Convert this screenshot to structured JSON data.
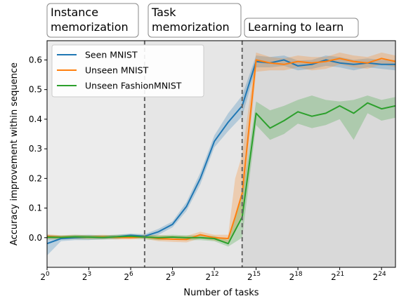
{
  "chart_data": {
    "type": "line",
    "xlabel": "Number of tasks",
    "ylabel": "Accuracy improvement within sequence",
    "x_scale": "log2",
    "x_tick_exponents": [
      0,
      3,
      6,
      9,
      12,
      15,
      18,
      21,
      24
    ],
    "x_tick_base": "2",
    "xlim_exponent": [
      0,
      25
    ],
    "ylim": [
      -0.1,
      0.665
    ],
    "y_ticks": [
      "0.0",
      "0.1",
      "0.2",
      "0.3",
      "0.4",
      "0.5",
      "0.6"
    ],
    "legend_position": "top-left",
    "phases": [
      {
        "label_lines": [
          "Instance",
          "memorization"
        ],
        "start_exponent": 0,
        "end_exponent": 7,
        "shade": "#ececec"
      },
      {
        "label_lines": [
          "Task",
          "memorization"
        ],
        "start_exponent": 7,
        "end_exponent": 14,
        "shade": "#e6e6e6"
      },
      {
        "label_lines": [
          "Learning to learn"
        ],
        "start_exponent": 14,
        "end_exponent": 25,
        "shade": "#d9d9d9"
      }
    ],
    "boundaries_exponent": [
      7,
      14
    ],
    "series": [
      {
        "name": "Seen MNIST",
        "color": "#1f77b4",
        "x_exponent": [
          0,
          1,
          2,
          3,
          4,
          5,
          6,
          7,
          8,
          9,
          10,
          11,
          12,
          13,
          14,
          15,
          16,
          17,
          18,
          19,
          20,
          21,
          22,
          23,
          24,
          25
        ],
        "y": [
          -0.02,
          -0.003,
          0.0,
          0.002,
          0.001,
          0.003,
          0.008,
          0.005,
          0.02,
          0.045,
          0.105,
          0.2,
          0.325,
          0.39,
          0.445,
          0.595,
          0.59,
          0.6,
          0.58,
          0.585,
          0.6,
          0.59,
          0.585,
          0.59,
          0.585,
          0.585
        ],
        "lower": [
          -0.06,
          -0.012,
          -0.008,
          -0.008,
          -0.006,
          -0.004,
          0.002,
          -0.002,
          0.01,
          0.035,
          0.09,
          0.18,
          0.305,
          0.36,
          0.41,
          0.575,
          0.575,
          0.58,
          0.565,
          0.57,
          0.58,
          0.575,
          0.565,
          0.575,
          0.57,
          0.565
        ],
        "upper": [
          0.01,
          0.006,
          0.008,
          0.01,
          0.008,
          0.01,
          0.014,
          0.012,
          0.03,
          0.055,
          0.12,
          0.22,
          0.345,
          0.42,
          0.48,
          0.615,
          0.61,
          0.615,
          0.598,
          0.6,
          0.615,
          0.61,
          0.6,
          0.605,
          0.6,
          0.6
        ]
      },
      {
        "name": "Unseen MNIST",
        "color": "#ff7f0e",
        "x_exponent": [
          0,
          1,
          2,
          3,
          4,
          5,
          6,
          7,
          8,
          9,
          10,
          11,
          12,
          13,
          13.5,
          14,
          15,
          16,
          17,
          18,
          19,
          20,
          21,
          22,
          23,
          24,
          25
        ],
        "y": [
          0.005,
          0.002,
          0.003,
          0.002,
          0.003,
          0.001,
          0.0,
          0.003,
          -0.003,
          -0.005,
          -0.006,
          0.01,
          0.0,
          -0.003,
          0.07,
          0.15,
          0.6,
          0.59,
          0.585,
          0.595,
          0.59,
          0.595,
          0.605,
          0.595,
          0.59,
          0.605,
          0.595
        ],
        "lower": [
          -0.005,
          -0.005,
          -0.004,
          -0.005,
          -0.004,
          -0.006,
          -0.006,
          -0.004,
          -0.012,
          -0.014,
          -0.016,
          -0.002,
          -0.01,
          -0.015,
          0.03,
          0.08,
          0.56,
          0.565,
          0.565,
          0.575,
          0.565,
          0.57,
          0.585,
          0.575,
          0.57,
          0.585,
          0.575
        ],
        "upper": [
          0.012,
          0.008,
          0.01,
          0.008,
          0.01,
          0.008,
          0.006,
          0.01,
          0.008,
          0.006,
          0.006,
          0.02,
          0.01,
          0.01,
          0.2,
          0.28,
          0.625,
          0.61,
          0.605,
          0.615,
          0.61,
          0.61,
          0.625,
          0.615,
          0.61,
          0.625,
          0.615
        ]
      },
      {
        "name": "Unseen FashionMNIST",
        "color": "#2ca02c",
        "x_exponent": [
          0,
          1,
          2,
          3,
          4,
          5,
          6,
          7,
          8,
          9,
          10,
          11,
          12,
          13,
          14,
          15,
          16,
          17,
          18,
          19,
          20,
          21,
          22,
          23,
          24,
          25
        ],
        "y": [
          0.002,
          0.001,
          0.003,
          0.002,
          0.001,
          0.003,
          0.005,
          0.002,
          0.0,
          0.002,
          0.0,
          0.0,
          -0.003,
          -0.02,
          0.07,
          0.42,
          0.37,
          0.395,
          0.425,
          0.41,
          0.42,
          0.445,
          0.42,
          0.455,
          0.435,
          0.445
        ],
        "lower": [
          -0.005,
          -0.006,
          -0.004,
          -0.005,
          -0.006,
          -0.004,
          -0.002,
          -0.005,
          -0.008,
          -0.006,
          -0.008,
          -0.008,
          -0.012,
          -0.03,
          0.0,
          0.38,
          0.33,
          0.35,
          0.385,
          0.37,
          0.38,
          0.4,
          0.33,
          0.42,
          0.395,
          0.405
        ],
        "upper": [
          0.008,
          0.008,
          0.01,
          0.009,
          0.008,
          0.01,
          0.012,
          0.009,
          0.008,
          0.01,
          0.008,
          0.008,
          0.006,
          -0.008,
          0.14,
          0.46,
          0.43,
          0.445,
          0.465,
          0.48,
          0.465,
          0.46,
          0.465,
          0.48,
          0.465,
          0.475
        ]
      }
    ]
  }
}
